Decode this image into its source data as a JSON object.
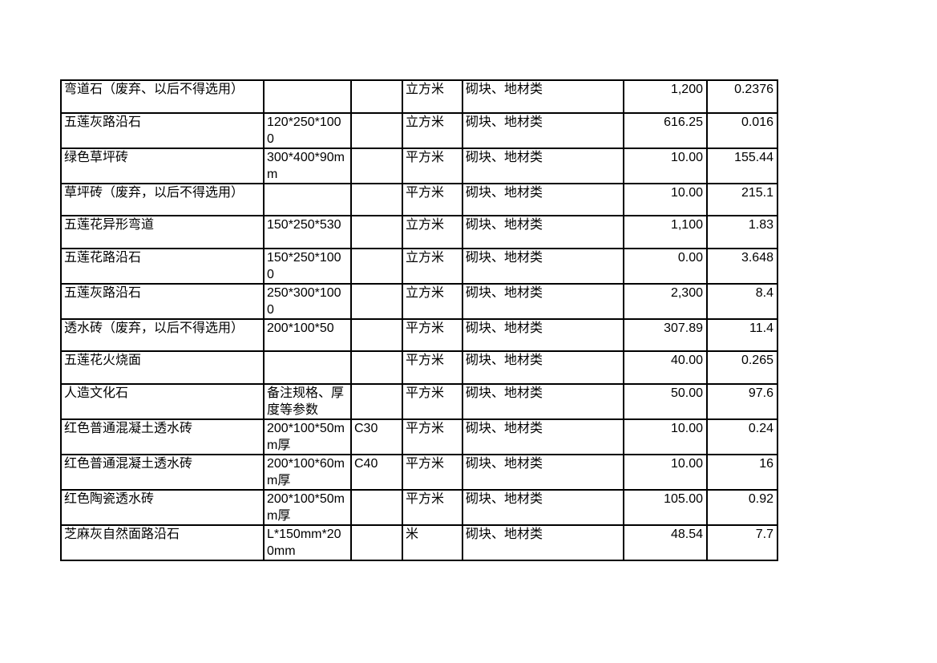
{
  "page": {
    "background_color": "#ffffff",
    "border_color": "#000000",
    "text_color": "#000000"
  },
  "table": {
    "column_keys": [
      "name",
      "spec",
      "grade",
      "unit",
      "category",
      "price",
      "quantity"
    ],
    "rows": [
      {
        "name": "弯道石（废弃、以后不得选用）",
        "spec": "",
        "grade": "",
        "unit": "立方米",
        "category": "砌块、地材类",
        "price": "1,200",
        "quantity": "0.2376"
      },
      {
        "name": "五莲灰路沿石",
        "spec": "120*250*1000",
        "grade": "",
        "unit": "立方米",
        "category": "砌块、地材类",
        "price": "616.25",
        "quantity": "0.016"
      },
      {
        "name": "绿色草坪砖",
        "spec": "300*400*90mm",
        "grade": "",
        "unit": "平方米",
        "category": "砌块、地材类",
        "price": "10.00",
        "quantity": "155.44"
      },
      {
        "name": "草坪砖（废弃，以后不得选用）",
        "spec": "",
        "grade": "",
        "unit": "平方米",
        "category": "砌块、地材类",
        "price": "10.00",
        "quantity": "215.1"
      },
      {
        "name": "五莲花异形弯道",
        "spec": "150*250*530",
        "grade": "",
        "unit": "立方米",
        "category": "砌块、地材类",
        "price": "1,100",
        "quantity": "1.83"
      },
      {
        "name": "五莲花路沿石",
        "spec": "150*250*1000",
        "grade": "",
        "unit": "立方米",
        "category": "砌块、地材类",
        "price": "0.00",
        "quantity": "3.648"
      },
      {
        "name": "五莲灰路沿石",
        "spec": "250*300*1000",
        "grade": "",
        "unit": "立方米",
        "category": "砌块、地材类",
        "price": "2,300",
        "quantity": "8.4"
      },
      {
        "name": "透水砖（废弃，以后不得选用）",
        "spec": "200*100*50",
        "grade": "",
        "unit": "平方米",
        "category": "砌块、地材类",
        "price": "307.89",
        "quantity": "11.4"
      },
      {
        "name": "五莲花火烧面",
        "spec": "",
        "grade": "",
        "unit": "平方米",
        "category": "砌块、地材类",
        "price": "40.00",
        "quantity": "0.265"
      },
      {
        "name": "人造文化石",
        "spec": "备注规格、厚度等参数",
        "grade": "",
        "unit": "平方米",
        "category": "砌块、地材类",
        "price": "50.00",
        "quantity": "97.6"
      },
      {
        "name": "红色普通混凝土透水砖",
        "spec": "200*100*50mm厚",
        "grade": "C30",
        "unit": "平方米",
        "category": "砌块、地材类",
        "price": "10.00",
        "quantity": "0.24"
      },
      {
        "name": "红色普通混凝土透水砖",
        "spec": "200*100*60mm厚",
        "grade": "C40",
        "unit": "平方米",
        "category": "砌块、地材类",
        "price": "10.00",
        "quantity": "16"
      },
      {
        "name": "红色陶瓷透水砖",
        "spec": "200*100*50mm厚",
        "grade": "",
        "unit": "平方米",
        "category": "砌块、地材类",
        "price": "105.00",
        "quantity": "0.92"
      },
      {
        "name": "芝麻灰自然面路沿石",
        "spec": "L*150mm*200mm",
        "grade": "",
        "unit": "米",
        "category": "砌块、地材类",
        "price": "48.54",
        "quantity": "7.7"
      }
    ]
  }
}
